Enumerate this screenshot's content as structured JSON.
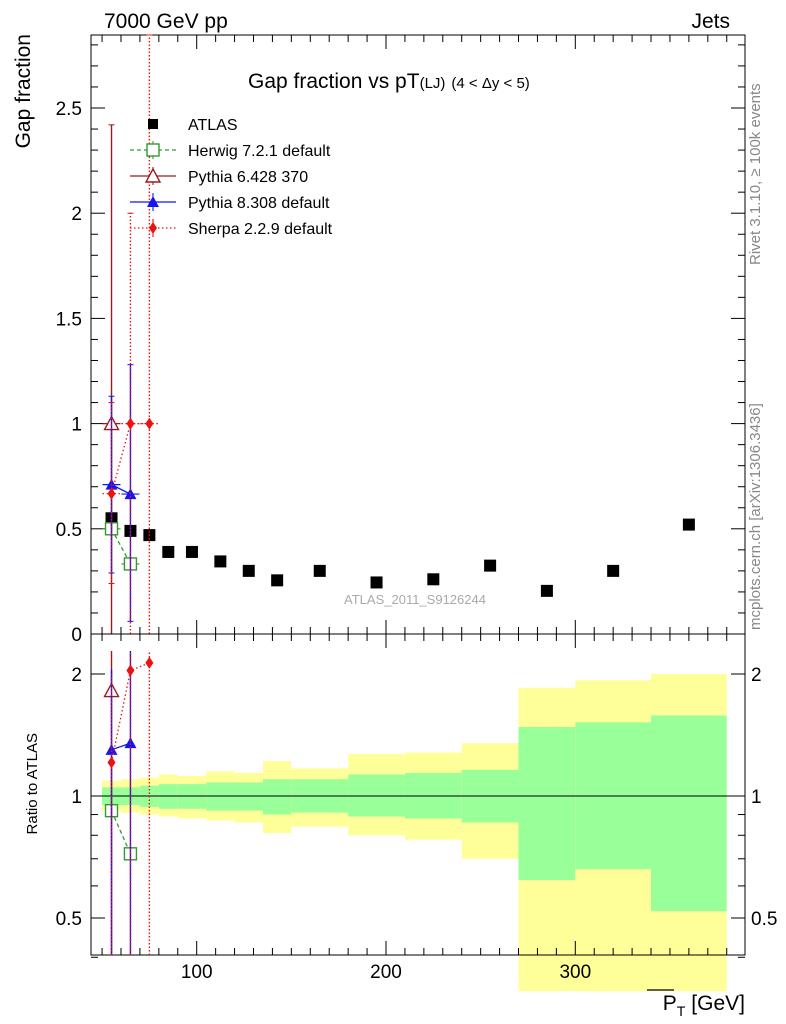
{
  "header": {
    "left": "7000 GeV pp",
    "right": "Jets"
  },
  "side_labels": {
    "rivet": "Rivet 3.1.10, ≥ 100k events",
    "mcplots": "mcplots.cern.ch [arXiv:1306.3436]"
  },
  "watermark": "ATLAS_2011_S9126244",
  "chart_data": {
    "type": "scatter",
    "title": "Gap fraction vs pT",
    "title_sub": "(LJ)",
    "title_range": "(4 < Δy < 5)",
    "ylabel": "Gap fraction",
    "xlabel": "P",
    "xlabel_sub": "T",
    "xlabel_unit": "[GeV]",
    "xlim": [
      42,
      380
    ],
    "ylim": [
      0,
      2.85
    ],
    "x_ticks": [
      100,
      200,
      300
    ],
    "y_ticks": [
      0,
      0.5,
      1,
      1.5,
      2,
      2.5
    ],
    "y_tick_labels": [
      "0",
      "0.5",
      "1",
      "1.5",
      "2",
      "2.5"
    ],
    "ratio": {
      "ylabel": "Ratio to ATLAS",
      "ylim": [
        0.33,
        2.28
      ],
      "y_ticks": [
        0.5,
        1,
        2
      ],
      "y_tick_labels": [
        "0.5",
        "1",
        "2"
      ],
      "bands": [
        {
          "x0": 50,
          "x1": 60,
          "g": [
            0.95,
            1.05
          ],
          "y": [
            0.92,
            1.09
          ]
        },
        {
          "x0": 60,
          "x1": 70,
          "g": [
            0.95,
            1.05
          ],
          "y": [
            0.91,
            1.1
          ]
        },
        {
          "x0": 70,
          "x1": 80,
          "g": [
            0.94,
            1.06
          ],
          "y": [
            0.9,
            1.11
          ]
        },
        {
          "x0": 80,
          "x1": 90,
          "g": [
            0.93,
            1.07
          ],
          "y": [
            0.89,
            1.13
          ]
        },
        {
          "x0": 90,
          "x1": 105,
          "g": [
            0.93,
            1.07
          ],
          "y": [
            0.88,
            1.12
          ]
        },
        {
          "x0": 105,
          "x1": 120,
          "g": [
            0.92,
            1.08
          ],
          "y": [
            0.87,
            1.15
          ]
        },
        {
          "x0": 120,
          "x1": 135,
          "g": [
            0.92,
            1.08
          ],
          "y": [
            0.86,
            1.14
          ]
        },
        {
          "x0": 135,
          "x1": 150,
          "g": [
            0.9,
            1.1
          ],
          "y": [
            0.81,
            1.22
          ]
        },
        {
          "x0": 150,
          "x1": 180,
          "g": [
            0.91,
            1.1
          ],
          "y": [
            0.84,
            1.17
          ]
        },
        {
          "x0": 180,
          "x1": 210,
          "g": [
            0.89,
            1.13
          ],
          "y": [
            0.8,
            1.27
          ]
        },
        {
          "x0": 210,
          "x1": 240,
          "g": [
            0.88,
            1.14
          ],
          "y": [
            0.78,
            1.28
          ]
        },
        {
          "x0": 240,
          "x1": 270,
          "g": [
            0.86,
            1.16
          ],
          "y": [
            0.7,
            1.35
          ]
        },
        {
          "x0": 270,
          "x1": 300,
          "g": [
            0.62,
            1.48
          ],
          "y": [
            0.33,
            1.85
          ]
        },
        {
          "x0": 300,
          "x1": 340,
          "g": [
            0.66,
            1.52
          ],
          "y": [
            0.33,
            1.93
          ]
        },
        {
          "x0": 340,
          "x1": 380,
          "g": [
            0.52,
            1.58
          ],
          "y": [
            0.33,
            2.0
          ]
        }
      ]
    },
    "series": [
      {
        "name": "ATLAS",
        "color": "#000000",
        "marker": "square-filled",
        "points": [
          {
            "x": 55,
            "y": 0.55
          },
          {
            "x": 65,
            "y": 0.49
          },
          {
            "x": 75,
            "y": 0.47
          },
          {
            "x": 85,
            "y": 0.39
          },
          {
            "x": 97.5,
            "y": 0.39
          },
          {
            "x": 112.5,
            "y": 0.345
          },
          {
            "x": 127.5,
            "y": 0.3
          },
          {
            "x": 142.5,
            "y": 0.255
          },
          {
            "x": 165,
            "y": 0.3
          },
          {
            "x": 195,
            "y": 0.245
          },
          {
            "x": 225,
            "y": 0.26
          },
          {
            "x": 255,
            "y": 0.325
          },
          {
            "x": 285,
            "y": 0.205
          },
          {
            "x": 320,
            "y": 0.3
          },
          {
            "x": 360,
            "y": 0.52
          }
        ]
      },
      {
        "name": "Herwig 7.2.1 default",
        "color": "#339933",
        "marker": "square-open",
        "dash": "4,3",
        "points": [
          {
            "x": 55,
            "y": 0.5,
            "ylo": 0.5,
            "yhi": 0.5,
            "r": 0.92
          },
          {
            "x": 65,
            "y": 0.333,
            "ylo": 0.333,
            "yhi": 0.333,
            "r": 0.72
          }
        ]
      },
      {
        "name": "Pythia 6.428 370",
        "color": "#9b1c1c",
        "marker": "triangle-open",
        "dash": "",
        "points": [
          {
            "x": 55,
            "y": 1.0,
            "ylo": 0.0,
            "yhi": 2.42,
            "r": 1.82,
            "rlo": 0.33,
            "rhi": 2.28
          }
        ]
      },
      {
        "name": "Pythia 8.308 default",
        "color": "#1515ee",
        "marker": "triangle-filled",
        "dash": "",
        "points": [
          {
            "x": 55,
            "y": 0.71,
            "ylo": 0.29,
            "yhi": 1.13,
            "r": 1.3,
            "rlo": 0.33,
            "rhi": 2.05
          },
          {
            "x": 65,
            "y": 0.665,
            "ylo": 0.06,
            "yhi": 1.28,
            "r": 1.35,
            "rlo": 0.33,
            "rhi": 2.28
          }
        ]
      },
      {
        "name": "Sherpa 2.2.9 default",
        "color": "#ee1111",
        "marker": "diamond-filled",
        "dash": "1.5,2.5",
        "points": [
          {
            "x": 55,
            "y": 0.667,
            "ylo": 0.24,
            "yhi": 1.1,
            "r": 1.21,
            "rlo": 0.33,
            "rhi": 2.0
          },
          {
            "x": 65,
            "y": 1.0,
            "ylo": 0.0,
            "yhi": 2.0,
            "r": 2.04,
            "rlo": 0.33,
            "rhi": 2.28
          },
          {
            "x": 75,
            "y": 1.0,
            "ylo": 0.0,
            "yhi": 2.85,
            "r": 2.13,
            "rlo": 0.33,
            "rhi": 2.28
          }
        ]
      }
    ]
  }
}
